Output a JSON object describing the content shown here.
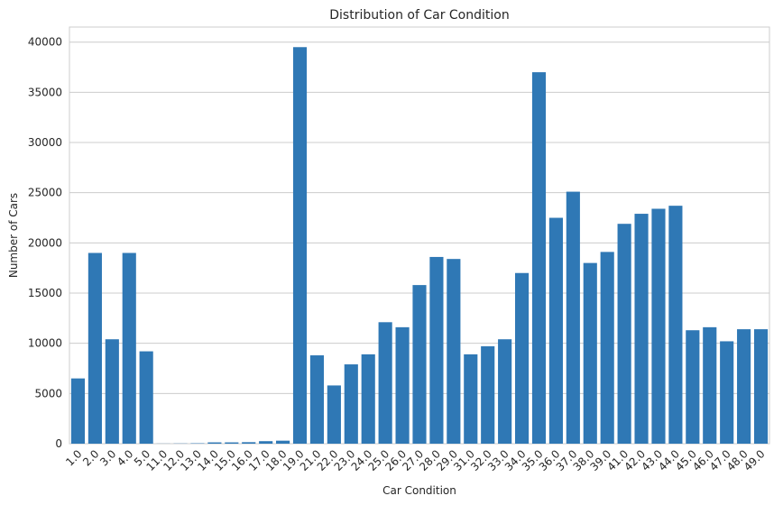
{
  "chart_data": {
    "type": "bar",
    "title": "Distribution of Car Condition",
    "xlabel": "Car Condition",
    "ylabel": "Number of Cars",
    "ylim": [
      0,
      41500
    ],
    "yticks": [
      0,
      5000,
      10000,
      15000,
      20000,
      25000,
      30000,
      35000,
      40000
    ],
    "grid": "horizontal",
    "bar_color": "#2f78b5",
    "categories": [
      "1.0",
      "2.0",
      "3.0",
      "4.0",
      "5.0",
      "11.0",
      "12.0",
      "13.0",
      "14.0",
      "15.0",
      "16.0",
      "17.0",
      "18.0",
      "19.0",
      "21.0",
      "22.0",
      "23.0",
      "24.0",
      "25.0",
      "26.0",
      "27.0",
      "28.0",
      "29.0",
      "31.0",
      "32.0",
      "33.0",
      "34.0",
      "35.0",
      "36.0",
      "37.0",
      "38.0",
      "39.0",
      "41.0",
      "42.0",
      "43.0",
      "44.0",
      "45.0",
      "46.0",
      "47.0",
      "48.0",
      "49.0"
    ],
    "values": [
      6500,
      19000,
      10400,
      19000,
      9200,
      10,
      20,
      40,
      130,
      130,
      150,
      250,
      300,
      39500,
      8800,
      5800,
      7900,
      8900,
      12100,
      11600,
      15800,
      18600,
      18400,
      8900,
      9700,
      10400,
      17000,
      37000,
      22500,
      25100,
      18000,
      19100,
      21900,
      22900,
      23400,
      23700,
      11300,
      11600,
      10200,
      11400,
      11400
    ]
  }
}
